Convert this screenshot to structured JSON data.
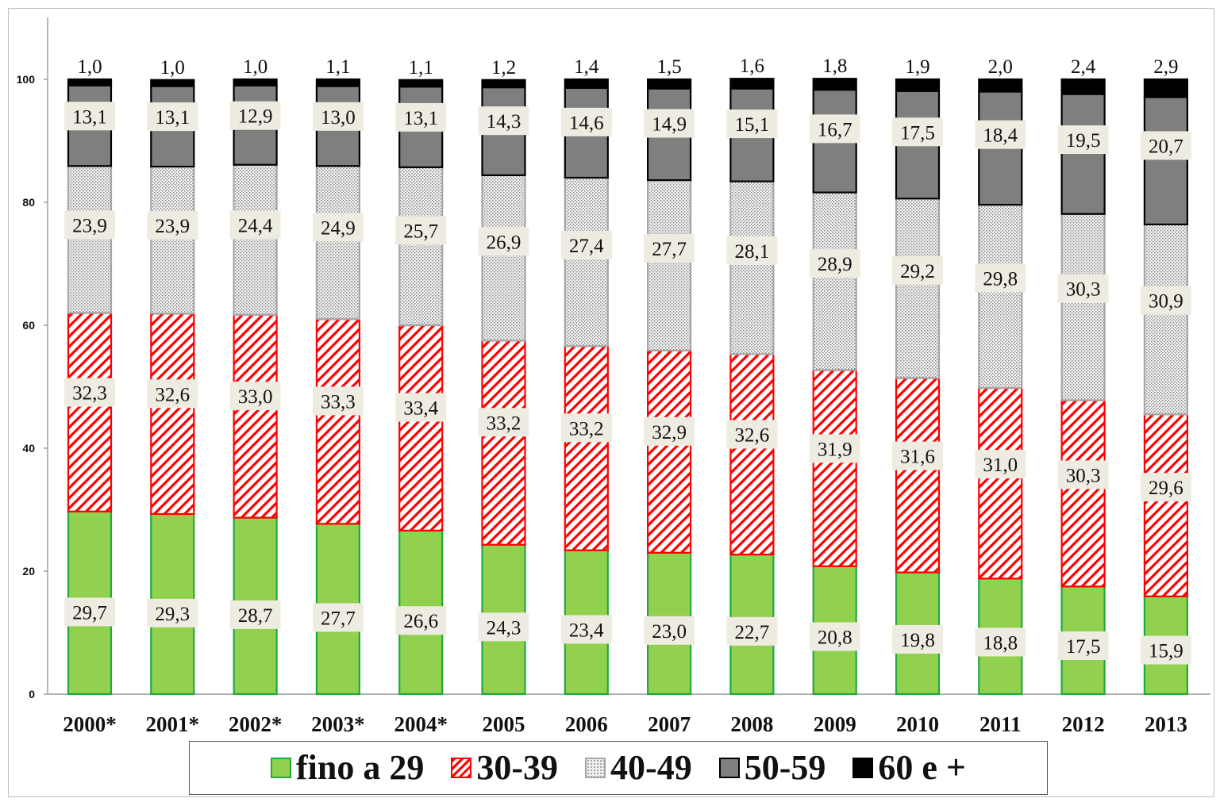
{
  "chart_data": {
    "type": "bar",
    "stacked": true,
    "categories": [
      "2000*",
      "2001*",
      "2002*",
      "2003*",
      "2004*",
      "2005",
      "2006",
      "2007",
      "2008",
      "2009",
      "2010",
      "2011",
      "2012",
      "2013"
    ],
    "series": [
      {
        "name": "fino a 29",
        "color": "#92d050",
        "pattern": "solid",
        "edge": "#1faa3c",
        "values": [
          29.7,
          29.3,
          28.7,
          27.7,
          26.6,
          24.3,
          23.4,
          23.0,
          22.7,
          20.8,
          19.8,
          18.8,
          17.5,
          15.9
        ],
        "labels": [
          "29,7",
          "29,3",
          "28,7",
          "27,7",
          "26,6",
          "24,3",
          "23,4",
          "23,0",
          "22,7",
          "20,8",
          "19,8",
          "18,8",
          "17,5",
          "15,9"
        ]
      },
      {
        "name": "30-39",
        "color": "#ff0000",
        "pattern": "diagonal-hatch",
        "edge": "#ff0000",
        "values": [
          32.3,
          32.6,
          33.0,
          33.3,
          33.4,
          33.2,
          33.2,
          32.9,
          32.6,
          31.9,
          31.6,
          31.0,
          30.3,
          29.6
        ],
        "labels": [
          "32,3",
          "32,6",
          "33,0",
          "33,3",
          "33,4",
          "33,2",
          "33,2",
          "32,9",
          "32,6",
          "31,9",
          "31,6",
          "31,0",
          "30,3",
          "29,6"
        ]
      },
      {
        "name": "40-49",
        "color": "#a6a6a6",
        "pattern": "dotted",
        "edge": "#a6a6a6",
        "values": [
          23.9,
          23.9,
          24.4,
          24.9,
          25.7,
          26.9,
          27.4,
          27.7,
          28.1,
          28.9,
          29.2,
          29.8,
          30.3,
          30.9
        ],
        "labels": [
          "23,9",
          "23,9",
          "24,4",
          "24,9",
          "25,7",
          "26,9",
          "27,4",
          "27,7",
          "28,1",
          "28,9",
          "29,2",
          "29,8",
          "30,3",
          "30,9"
        ]
      },
      {
        "name": "50-59",
        "color": "#7f7f7f",
        "pattern": "solid",
        "edge": "#000000",
        "values": [
          13.1,
          13.1,
          12.9,
          13.0,
          13.1,
          14.3,
          14.6,
          14.9,
          15.1,
          16.7,
          17.5,
          18.4,
          19.5,
          20.7
        ],
        "labels": [
          "13,1",
          "13,1",
          "12,9",
          "13,0",
          "13,1",
          "14,3",
          "14,6",
          "14,9",
          "15,1",
          "16,7",
          "17,5",
          "18,4",
          "19,5",
          "20,7"
        ]
      },
      {
        "name": "60 e +",
        "color": "#000000",
        "pattern": "solid",
        "edge": "#000000",
        "values": [
          1.0,
          1.0,
          1.0,
          1.1,
          1.1,
          1.2,
          1.4,
          1.5,
          1.6,
          1.8,
          1.9,
          2.0,
          2.4,
          2.9
        ],
        "labels": [
          "1,0",
          "1,0",
          "1,0",
          "1,1",
          "1,1",
          "1,2",
          "1,4",
          "1,5",
          "1,6",
          "1,8",
          "1,9",
          "2,0",
          "2,4",
          "2,9"
        ]
      }
    ],
    "ylim": [
      0,
      100
    ],
    "yticks": [
      0,
      20,
      40,
      60,
      80,
      100
    ],
    "title": "",
    "xlabel": "",
    "ylabel": "",
    "grid": false,
    "legend": "bottom"
  }
}
